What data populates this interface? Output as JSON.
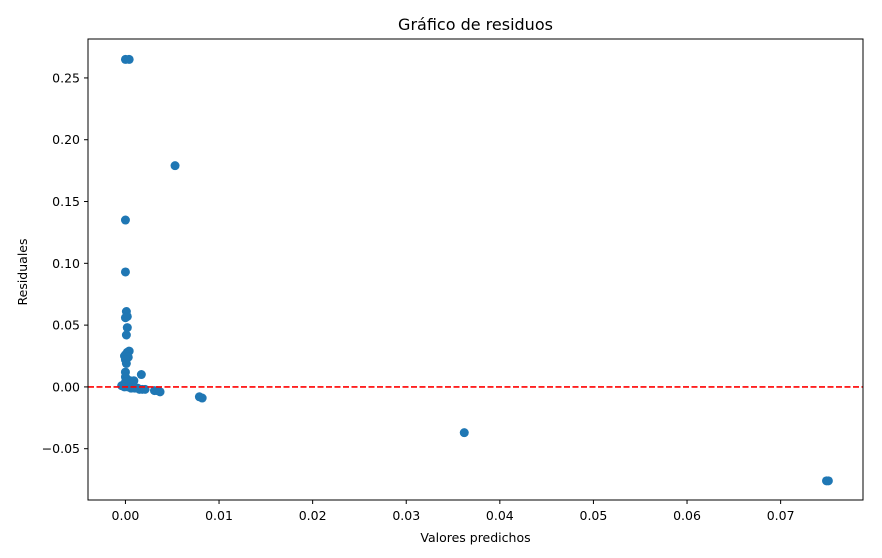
{
  "chart_data": {
    "type": "scatter",
    "title": "Gráfico de residuos",
    "xlabel": "Valores predichos",
    "ylabel": "Residuales",
    "xlim": [
      -0.004,
      0.0788
    ],
    "ylim": [
      -0.0915,
      0.2815
    ],
    "xticks": [
      {
        "value": 0.0,
        "label": "0.00"
      },
      {
        "value": 0.01,
        "label": "0.01"
      },
      {
        "value": 0.02,
        "label": "0.02"
      },
      {
        "value": 0.03,
        "label": "0.03"
      },
      {
        "value": 0.04,
        "label": "0.04"
      },
      {
        "value": 0.05,
        "label": "0.05"
      },
      {
        "value": 0.06,
        "label": "0.06"
      },
      {
        "value": 0.07,
        "label": "0.07"
      }
    ],
    "yticks": [
      {
        "value": -0.05,
        "label": "−0.05"
      },
      {
        "value": 0.0,
        "label": "0.00"
      },
      {
        "value": 0.05,
        "label": "0.05"
      },
      {
        "value": 0.1,
        "label": "0.10"
      },
      {
        "value": 0.15,
        "label": "0.15"
      },
      {
        "value": 0.2,
        "label": "0.20"
      },
      {
        "value": 0.25,
        "label": "0.25"
      }
    ],
    "grid": false,
    "reference_line": {
      "y": 0.0,
      "color": "#ff0000",
      "style": "dashed"
    },
    "marker_color": "#1f77b4",
    "points": [
      {
        "x": 0.0,
        "y": 0.265
      },
      {
        "x": 0.0004,
        "y": 0.265
      },
      {
        "x": 0.0053,
        "y": 0.179
      },
      {
        "x": 0.0,
        "y": 0.135
      },
      {
        "x": 0.0,
        "y": 0.093
      },
      {
        "x": 0.0001,
        "y": 0.061
      },
      {
        "x": 0.0002,
        "y": 0.057
      },
      {
        "x": 0.0,
        "y": 0.056
      },
      {
        "x": 0.0002,
        "y": 0.048
      },
      {
        "x": 0.0001,
        "y": 0.042
      },
      {
        "x": 0.0004,
        "y": 0.029
      },
      {
        "x": 0.0002,
        "y": 0.028
      },
      {
        "x": 0.0,
        "y": 0.026
      },
      {
        "x": -0.0001,
        "y": 0.025
      },
      {
        "x": 0.0003,
        "y": 0.024
      },
      {
        "x": 0.0,
        "y": 0.022
      },
      {
        "x": 0.0001,
        "y": 0.019
      },
      {
        "x": 0.0,
        "y": 0.012
      },
      {
        "x": 0.0017,
        "y": 0.01
      },
      {
        "x": 0.0,
        "y": 0.008
      },
      {
        "x": 0.0002,
        "y": 0.006
      },
      {
        "x": 0.0005,
        "y": 0.005
      },
      {
        "x": 0.0009,
        "y": 0.005
      },
      {
        "x": 0.0,
        "y": 0.004
      },
      {
        "x": 0.0007,
        "y": 0.003
      },
      {
        "x": -0.0004,
        "y": 0.001
      },
      {
        "x": -0.0001,
        "y": 0.0
      },
      {
        "x": 0.0003,
        "y": 0.0
      },
      {
        "x": 0.0006,
        "y": -0.001
      },
      {
        "x": 0.001,
        "y": -0.001
      },
      {
        "x": 0.0013,
        "y": -0.001
      },
      {
        "x": 0.0015,
        "y": -0.002
      },
      {
        "x": 0.0018,
        "y": -0.002
      },
      {
        "x": 0.0021,
        "y": -0.002
      },
      {
        "x": 0.0031,
        "y": -0.003
      },
      {
        "x": 0.0034,
        "y": -0.003
      },
      {
        "x": 0.0037,
        "y": -0.004
      },
      {
        "x": 0.0079,
        "y": -0.008
      },
      {
        "x": 0.0082,
        "y": -0.009
      },
      {
        "x": 0.0362,
        "y": -0.037
      },
      {
        "x": 0.0749,
        "y": -0.076
      },
      {
        "x": 0.0751,
        "y": -0.076
      }
    ]
  }
}
